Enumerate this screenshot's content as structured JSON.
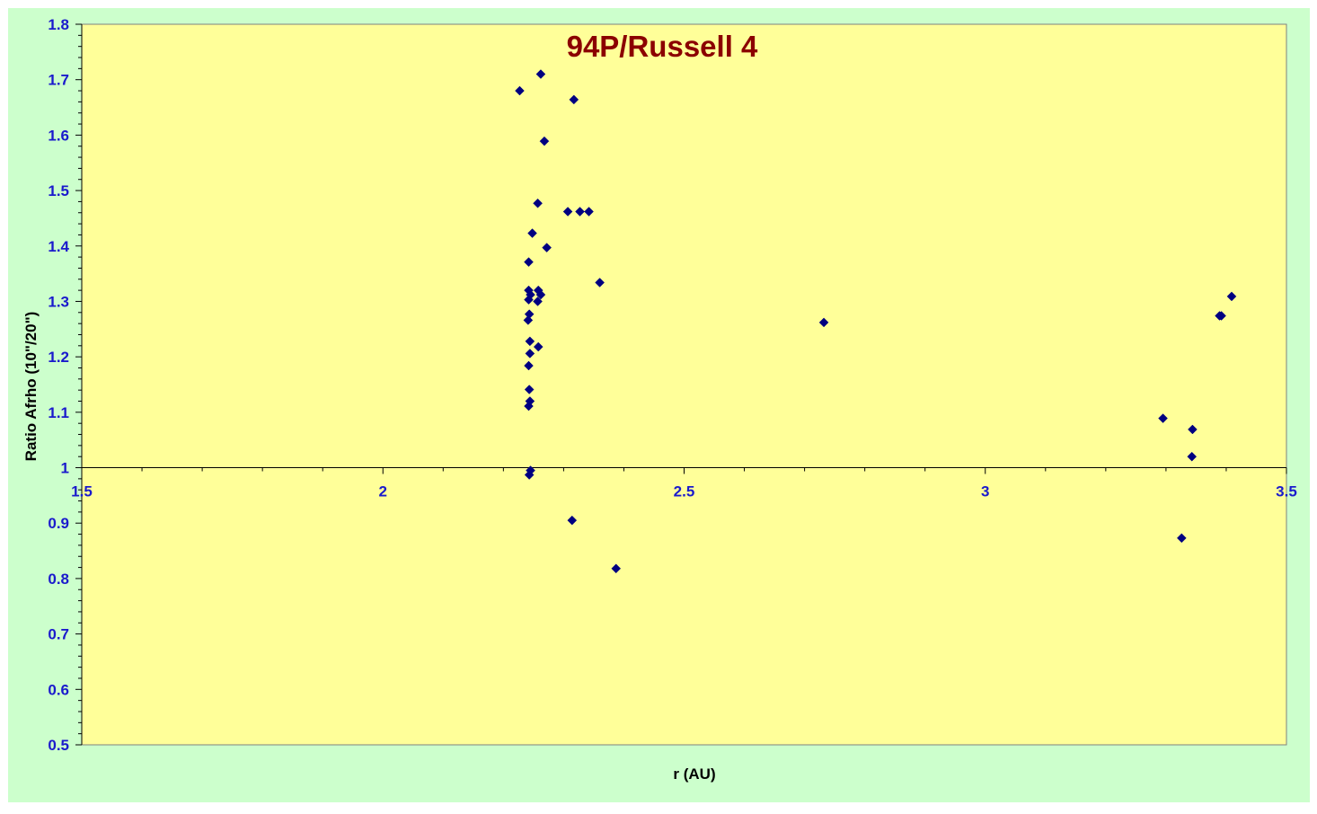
{
  "colors": {
    "outer_background": "#ccffcc",
    "plot_background": "#ffff99",
    "marker": "#000080",
    "tick_label": "#1a1acc",
    "title": "#8b0000"
  },
  "chart_data": {
    "type": "scatter",
    "title": "94P/Russell  4",
    "xlabel": "r (AU)",
    "ylabel": "Ratio Afrho (10\"/20\")",
    "xlim": [
      1.5,
      3.5
    ],
    "ylim": [
      0.5,
      1.8
    ],
    "x_axis_crosses_y_at": 1.0,
    "grid": false,
    "legend": "none",
    "marker": "diamond",
    "x_ticks": [
      "1.5",
      "2",
      "2.5",
      "3",
      "3.5"
    ],
    "y_ticks": [
      "0.5",
      "0.6",
      "0.7",
      "0.8",
      "0.9",
      "1",
      "1.1",
      "1.2",
      "1.3",
      "1.4",
      "1.5",
      "1.6",
      "1.7",
      "1.8"
    ],
    "points": [
      [
        2.227,
        1.68
      ],
      [
        2.262,
        1.71
      ],
      [
        2.317,
        1.664
      ],
      [
        2.268,
        1.589
      ],
      [
        2.257,
        1.477
      ],
      [
        2.307,
        1.462
      ],
      [
        2.327,
        1.462
      ],
      [
        2.342,
        1.462
      ],
      [
        2.248,
        1.423
      ],
      [
        2.272,
        1.397
      ],
      [
        2.242,
        1.371
      ],
      [
        2.36,
        1.334
      ],
      [
        2.242,
        1.32
      ],
      [
        2.245,
        1.312
      ],
      [
        2.258,
        1.32
      ],
      [
        2.262,
        1.312
      ],
      [
        2.242,
        1.303
      ],
      [
        2.257,
        1.3
      ],
      [
        2.243,
        1.277
      ],
      [
        2.241,
        1.266
      ],
      [
        2.258,
        1.218
      ],
      [
        2.244,
        1.228
      ],
      [
        2.244,
        1.206
      ],
      [
        2.242,
        1.184
      ],
      [
        2.243,
        1.141
      ],
      [
        2.244,
        1.12
      ],
      [
        2.242,
        1.111
      ],
      [
        2.245,
        0.995
      ],
      [
        2.243,
        0.987
      ],
      [
        2.314,
        0.905
      ],
      [
        2.387,
        0.818
      ],
      [
        2.732,
        1.262
      ],
      [
        3.295,
        1.089
      ],
      [
        3.344,
        1.069
      ],
      [
        3.343,
        1.02
      ],
      [
        3.326,
        0.873
      ],
      [
        3.389,
        1.274
      ],
      [
        3.392,
        1.274
      ],
      [
        3.409,
        1.309
      ]
    ]
  }
}
